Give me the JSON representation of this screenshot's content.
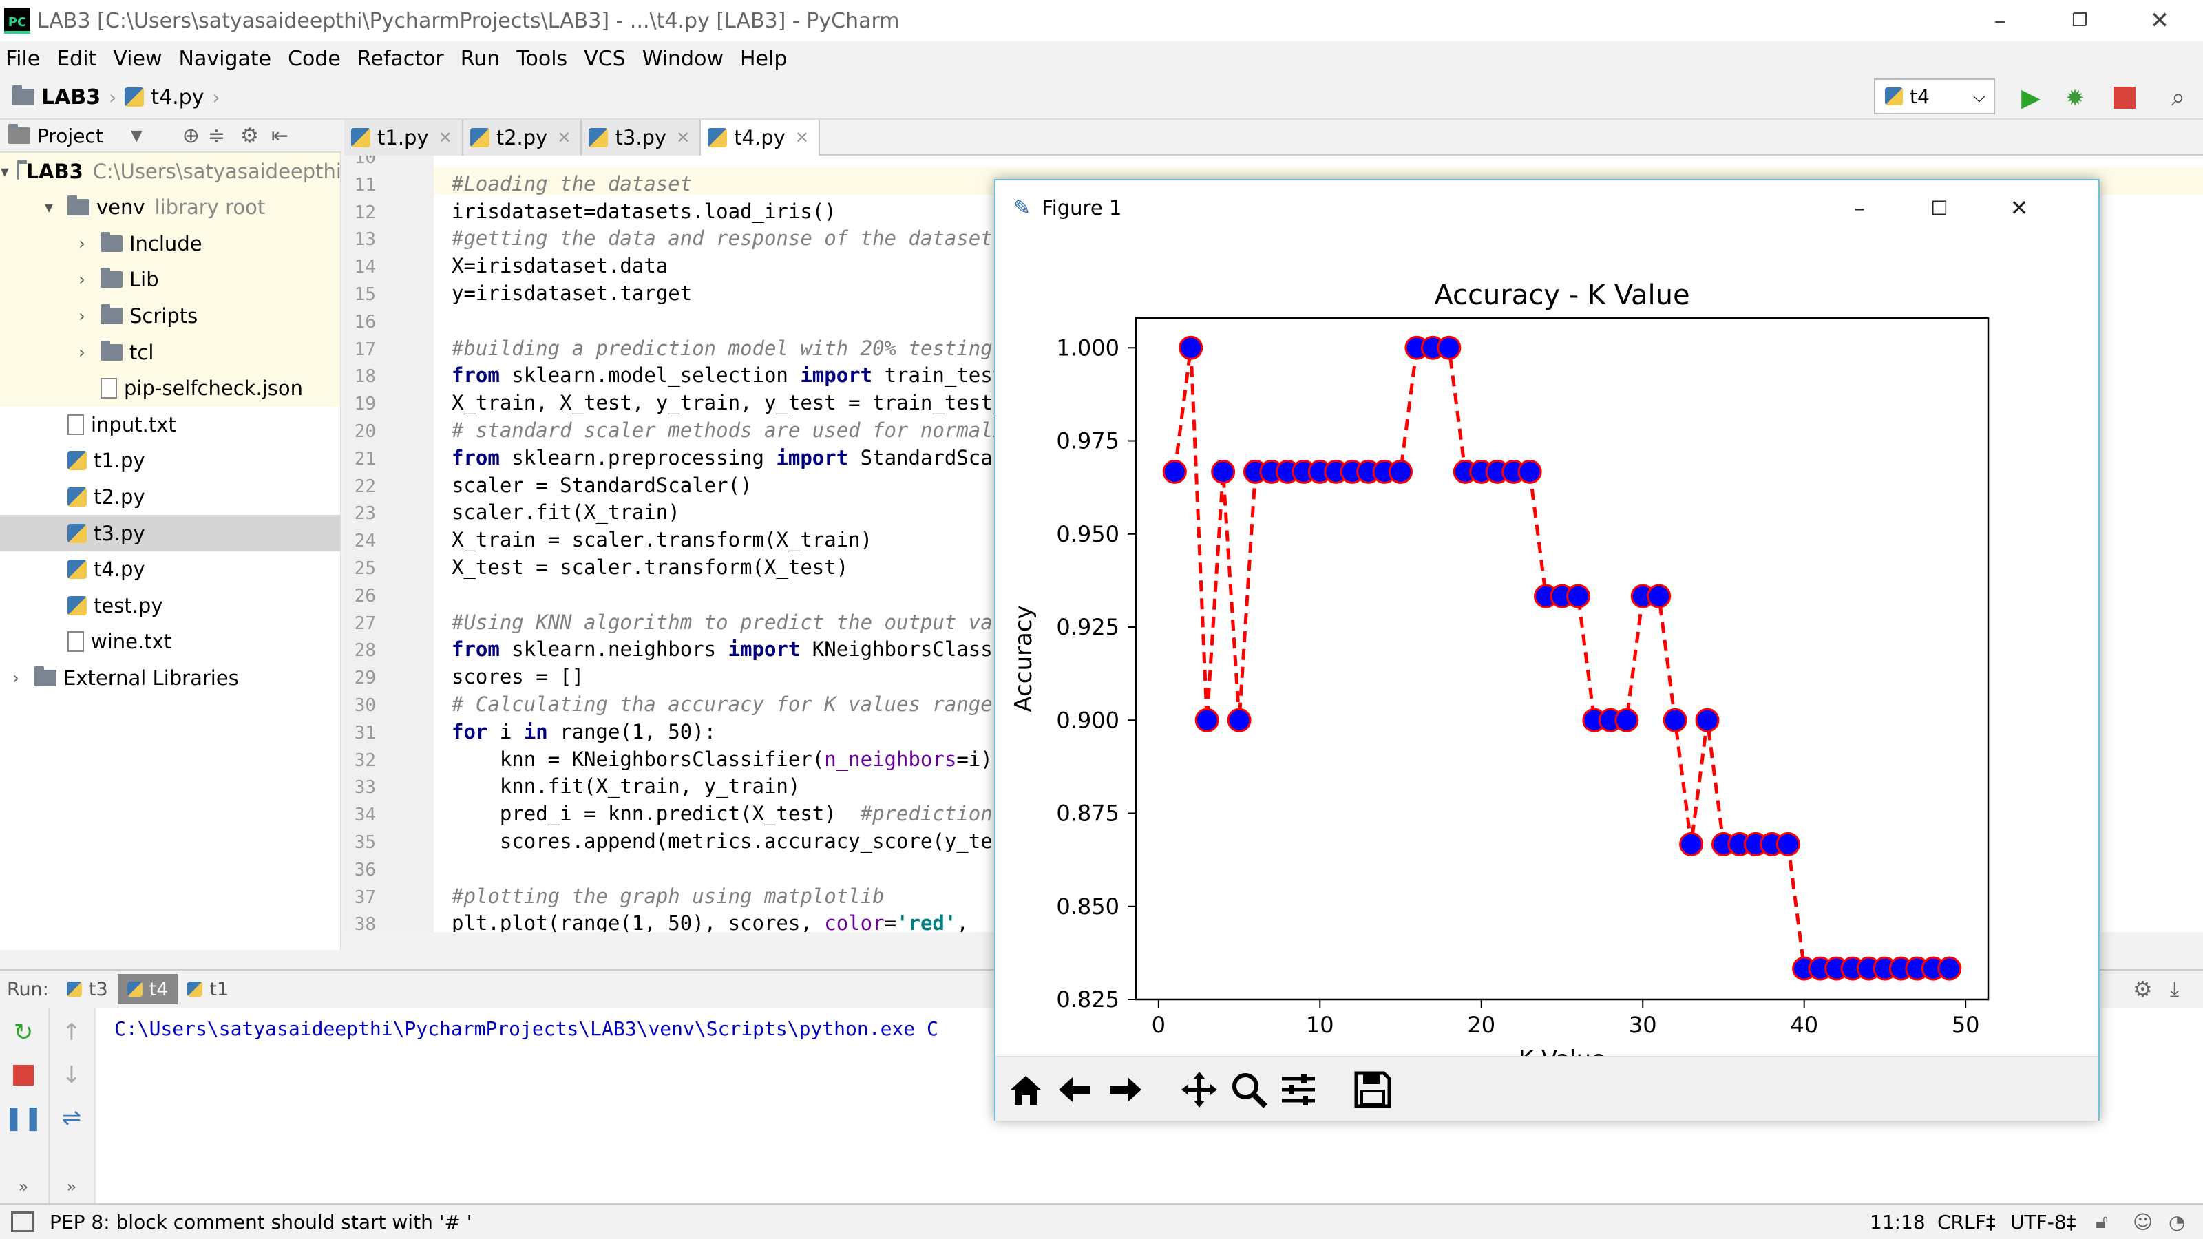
{
  "window": {
    "title": "LAB3 [C:\\Users\\satyasaideepthi\\PycharmProjects\\LAB3] - ...\\t4.py [LAB3] - PyCharm",
    "logo": "PC"
  },
  "menu": [
    "File",
    "Edit",
    "View",
    "Navigate",
    "Code",
    "Refactor",
    "Run",
    "Tools",
    "VCS",
    "Window",
    "Help"
  ],
  "breadcrumb": {
    "project": "LAB3",
    "file": "t4.py"
  },
  "run_config": {
    "name": "t4"
  },
  "project_panel": {
    "title": "Project",
    "tree": [
      {
        "label": "LAB3",
        "hint": "C:\\Users\\satyasaideepthi",
        "icon": "folder-icon",
        "arrow": "▾",
        "indent": 0,
        "highlight": true,
        "bold": true
      },
      {
        "label": "venv",
        "hint": "library root",
        "icon": "folder-icon",
        "arrow": "▾",
        "indent": 1,
        "highlight": true
      },
      {
        "label": "Include",
        "hint": "",
        "icon": "folder-icon",
        "arrow": "›",
        "indent": 2,
        "highlight": true
      },
      {
        "label": "Lib",
        "hint": "",
        "icon": "folder-icon",
        "arrow": "›",
        "indent": 2,
        "highlight": true
      },
      {
        "label": "Scripts",
        "hint": "",
        "icon": "folder-icon",
        "arrow": "›",
        "indent": 2,
        "highlight": true
      },
      {
        "label": "tcl",
        "hint": "",
        "icon": "folder-icon",
        "arrow": "›",
        "indent": 2,
        "highlight": true
      },
      {
        "label": "pip-selfcheck.json",
        "hint": "",
        "icon": "json-file-icon",
        "arrow": "",
        "indent": 2,
        "highlight": true
      },
      {
        "label": "input.txt",
        "hint": "",
        "icon": "text-file-icon",
        "arrow": "",
        "indent": 1
      },
      {
        "label": "t1.py",
        "hint": "",
        "icon": "python-file-icon",
        "arrow": "",
        "indent": 1
      },
      {
        "label": "t2.py",
        "hint": "",
        "icon": "python-file-icon",
        "arrow": "",
        "indent": 1
      },
      {
        "label": "t3.py",
        "hint": "",
        "icon": "python-file-icon",
        "arrow": "",
        "indent": 1,
        "selected": true
      },
      {
        "label": "t4.py",
        "hint": "",
        "icon": "python-file-icon",
        "arrow": "",
        "indent": 1
      },
      {
        "label": "test.py",
        "hint": "",
        "icon": "python-file-icon",
        "arrow": "",
        "indent": 1
      },
      {
        "label": "wine.txt",
        "hint": "",
        "icon": "text-file-icon",
        "arrow": "",
        "indent": 1
      },
      {
        "label": "External Libraries",
        "hint": "",
        "icon": "libraries-icon",
        "arrow": "›",
        "indent": 0
      }
    ]
  },
  "editor_tabs": [
    {
      "label": "t1.py",
      "active": false
    },
    {
      "label": "t2.py",
      "active": false
    },
    {
      "label": "t3.py",
      "active": false
    },
    {
      "label": "t4.py",
      "active": true
    }
  ],
  "code_lines": [
    {
      "n": "10",
      "tokens": []
    },
    {
      "n": "11",
      "tokens": [
        [
          "cm",
          "#Loading the dataset"
        ]
      ]
    },
    {
      "n": "12",
      "tokens": [
        [
          "",
          "irisdataset=datasets.load_iris()"
        ]
      ]
    },
    {
      "n": "13",
      "tokens": [
        [
          "cm",
          "#getting the data and response of the dataset"
        ]
      ]
    },
    {
      "n": "14",
      "tokens": [
        [
          "",
          "X=irisdataset.data"
        ]
      ]
    },
    {
      "n": "15",
      "tokens": [
        [
          "",
          "y=irisdataset.target"
        ]
      ]
    },
    {
      "n": "16",
      "tokens": []
    },
    {
      "n": "17",
      "tokens": [
        [
          "cm",
          "#building a prediction model with 20% testing"
        ]
      ]
    },
    {
      "n": "18",
      "tokens": [
        [
          "kw",
          "from"
        ],
        [
          "",
          " sklearn.model_selection "
        ],
        [
          "kw",
          "import"
        ],
        [
          "",
          " train_test_split"
        ]
      ]
    },
    {
      "n": "19",
      "tokens": [
        [
          "",
          "X_train, X_test, y_train, y_test = train_test_split"
        ]
      ]
    },
    {
      "n": "20",
      "tokens": [
        [
          "cm",
          "# standard scaler methods are used for normalization"
        ]
      ]
    },
    {
      "n": "21",
      "tokens": [
        [
          "kw",
          "from"
        ],
        [
          "",
          " sklearn.preprocessing "
        ],
        [
          "kw",
          "import"
        ],
        [
          "",
          " StandardScaler"
        ]
      ]
    },
    {
      "n": "22",
      "tokens": [
        [
          "",
          "scaler = StandardScaler()"
        ]
      ]
    },
    {
      "n": "23",
      "tokens": [
        [
          "",
          "scaler.fit(X_train)"
        ]
      ]
    },
    {
      "n": "24",
      "tokens": [
        [
          "",
          "X_train = scaler.transform(X_train)"
        ]
      ]
    },
    {
      "n": "25",
      "tokens": [
        [
          "",
          "X_test = scaler.transform(X_test)"
        ]
      ]
    },
    {
      "n": "26",
      "tokens": []
    },
    {
      "n": "27",
      "tokens": [
        [
          "cm",
          "#Using KNN algorithm to predict the output values"
        ]
      ]
    },
    {
      "n": "28",
      "tokens": [
        [
          "kw",
          "from"
        ],
        [
          "",
          " sklearn.neighbors "
        ],
        [
          "kw",
          "import"
        ],
        [
          "",
          " KNeighborsClassifier"
        ]
      ]
    },
    {
      "n": "29",
      "tokens": [
        [
          "",
          "scores = []"
        ]
      ]
    },
    {
      "n": "30",
      "tokens": [
        [
          "cm",
          "# Calculating tha accuracy for K values range"
        ]
      ]
    },
    {
      "n": "31",
      "tokens": [
        [
          "kw",
          "for"
        ],
        [
          "",
          " i "
        ],
        [
          "kw",
          "in"
        ],
        [
          "",
          " range(1, 50):"
        ]
      ]
    },
    {
      "n": "32",
      "tokens": [
        [
          "",
          "    knn = KNeighborsClassifier("
        ],
        [
          "pr",
          "n_neighbors"
        ],
        [
          "",
          "=i)"
        ]
      ]
    },
    {
      "n": "33",
      "tokens": [
        [
          "",
          "    knn.fit(X_train, y_train)"
        ]
      ]
    },
    {
      "n": "34",
      "tokens": [
        [
          "",
          "    pred_i = knn.predict(X_test)  "
        ],
        [
          "cm",
          "#prediction"
        ]
      ]
    },
    {
      "n": "35",
      "tokens": [
        [
          "",
          "    scores.append(metrics.accuracy_score(y_test, pred_i))"
        ]
      ]
    },
    {
      "n": "36",
      "tokens": []
    },
    {
      "n": "37",
      "tokens": [
        [
          "cm",
          "#plotting the graph using matplotlib"
        ]
      ]
    },
    {
      "n": "38",
      "tokens": [
        [
          "",
          "plt.plot(range(1, 50), scores, "
        ],
        [
          "pr",
          "color"
        ],
        [
          "",
          "="
        ],
        [
          "st",
          "'red'"
        ],
        [
          "",
          ","
        ]
      ]
    }
  ],
  "run_panel": {
    "label": "Run:",
    "tabs": [
      {
        "label": "t3",
        "active": false
      },
      {
        "label": "t4",
        "active": true
      },
      {
        "label": "t1",
        "active": false
      }
    ],
    "console_line": "C:\\Users\\satyasaideepthi\\PycharmProjects\\LAB3\\venv\\Scripts\\python.exe C"
  },
  "statusbar": {
    "message": "PEP 8: block comment should start with '# '",
    "position": "11:18",
    "line_sep": "CRLF‡",
    "encoding": "UTF-8‡"
  },
  "figure_window": {
    "title": "Figure 1",
    "toolbar_buttons": [
      "home-icon",
      "back-icon",
      "forward-icon",
      "pan-icon",
      "zoom-icon",
      "configure-subplots-icon",
      "save-icon"
    ]
  },
  "chart_data": {
    "type": "line",
    "title": "Accuracy - K Value",
    "xlabel": "K Value",
    "ylabel": "Accuracy",
    "xlim": [
      -1.4,
      51.4
    ],
    "ylim": [
      0.825,
      1.008
    ],
    "xticks": [
      "0",
      "10",
      "20",
      "30",
      "40",
      "50"
    ],
    "yticks": [
      "0.825",
      "0.850",
      "0.875",
      "0.900",
      "0.925",
      "0.950",
      "0.975",
      "1.000"
    ],
    "grid": false,
    "series": [
      {
        "line_color": "#ff0000",
        "line_style": "dashed",
        "marker_face": "#0000ff",
        "marker_edge": "#ff0000",
        "x": [
          1,
          2,
          3,
          4,
          5,
          6,
          7,
          8,
          9,
          10,
          11,
          12,
          13,
          14,
          15,
          16,
          17,
          18,
          19,
          20,
          21,
          22,
          23,
          24,
          25,
          26,
          27,
          28,
          29,
          30,
          31,
          32,
          33,
          34,
          35,
          36,
          37,
          38,
          39,
          40,
          41,
          42,
          43,
          44,
          45,
          46,
          47,
          48,
          49
        ],
        "y": [
          0.9667,
          1.0,
          0.9,
          0.9667,
          0.9,
          0.9667,
          0.9667,
          0.9667,
          0.9667,
          0.9667,
          0.9667,
          0.9667,
          0.9667,
          0.9667,
          0.9667,
          1.0,
          1.0,
          1.0,
          0.9667,
          0.9667,
          0.9667,
          0.9667,
          0.9667,
          0.9333,
          0.9333,
          0.9333,
          0.9,
          0.9,
          0.9,
          0.9333,
          0.9333,
          0.9,
          0.8667,
          0.9,
          0.8667,
          0.8667,
          0.8667,
          0.8667,
          0.8667,
          0.8333,
          0.8333,
          0.8333,
          0.8333,
          0.8333,
          0.8333,
          0.8333,
          0.8333,
          0.8333,
          0.8333
        ]
      }
    ]
  }
}
